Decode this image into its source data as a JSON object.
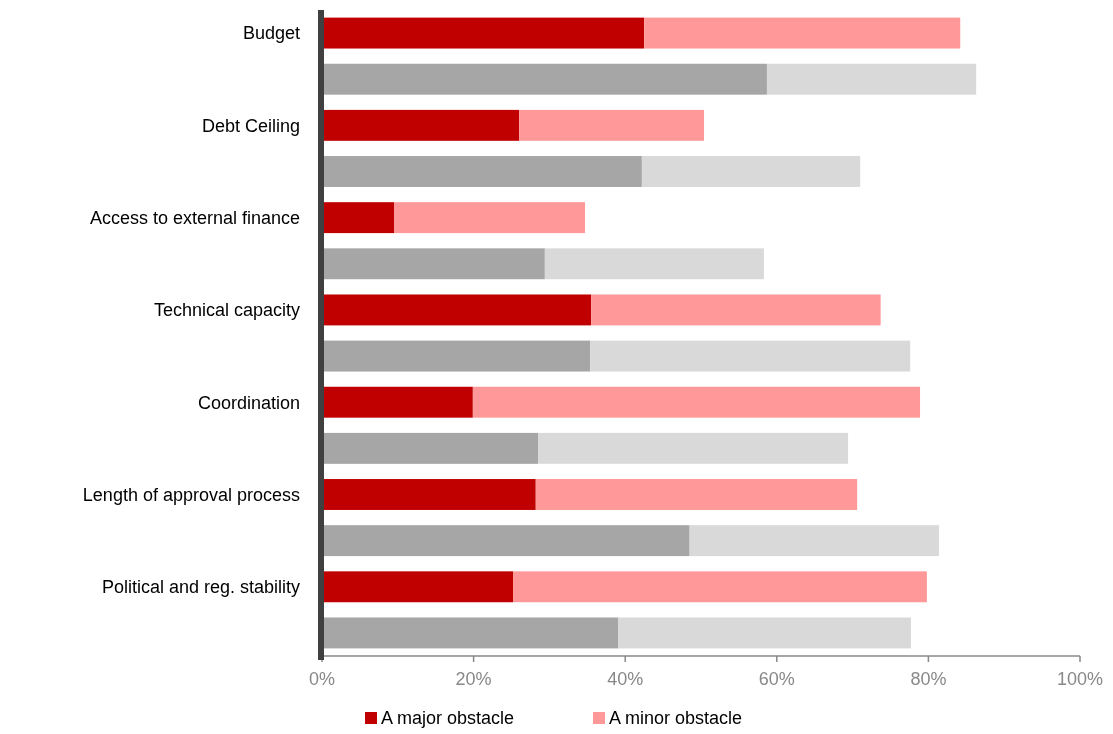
{
  "chart_data": {
    "type": "bar",
    "orientation": "horizontal",
    "stacked": true,
    "categories": [
      "Budget",
      null,
      "Debt Ceiling",
      null,
      "Access to external finance",
      null,
      "Technical capacity",
      null,
      "Coordination",
      null,
      "Length of approval process",
      null,
      "Political and reg. stability",
      null
    ],
    "series": [
      {
        "name": "A major obstacle",
        "color": "#c00000",
        "colors": [
          "#c00000",
          "#a6a6a6",
          "#c00000",
          "#a6a6a6",
          "#c00000",
          "#a6a6a6",
          "#c00000",
          "#a6a6a6",
          "#c00000",
          "#a6a6a6",
          "#c00000",
          "#a6a6a6",
          "#c00000",
          "#a6a6a6"
        ],
        "values": [
          42.5,
          58.7,
          26.0,
          42.2,
          9.5,
          29.4,
          35.5,
          35.4,
          19.9,
          28.5,
          28.2,
          48.5,
          25.2,
          39.1
        ]
      },
      {
        "name": "A minor obstacle",
        "color": "#ff9999",
        "colors": [
          "#ff9999",
          "#d9d9d9",
          "#ff9999",
          "#d9d9d9",
          "#ff9999",
          "#d9d9d9",
          "#ff9999",
          "#d9d9d9",
          "#ff9999",
          "#d9d9d9",
          "#ff9999",
          "#d9d9d9",
          "#ff9999",
          "#d9d9d9"
        ],
        "values": [
          41.7,
          27.6,
          24.4,
          28.8,
          25.2,
          28.9,
          38.2,
          42.2,
          59.0,
          40.9,
          42.4,
          32.9,
          54.6,
          38.6
        ]
      }
    ],
    "xlim": [
      0,
      100
    ],
    "xticks": [
      {
        "value": 0,
        "label": "0%"
      },
      {
        "value": 20,
        "label": "20%"
      },
      {
        "value": 40,
        "label": "40%"
      },
      {
        "value": 60,
        "label": "60%"
      },
      {
        "value": 80,
        "label": "80%"
      },
      {
        "value": 100,
        "label": "100%"
      }
    ],
    "grid": false,
    "legend": "bottom"
  }
}
